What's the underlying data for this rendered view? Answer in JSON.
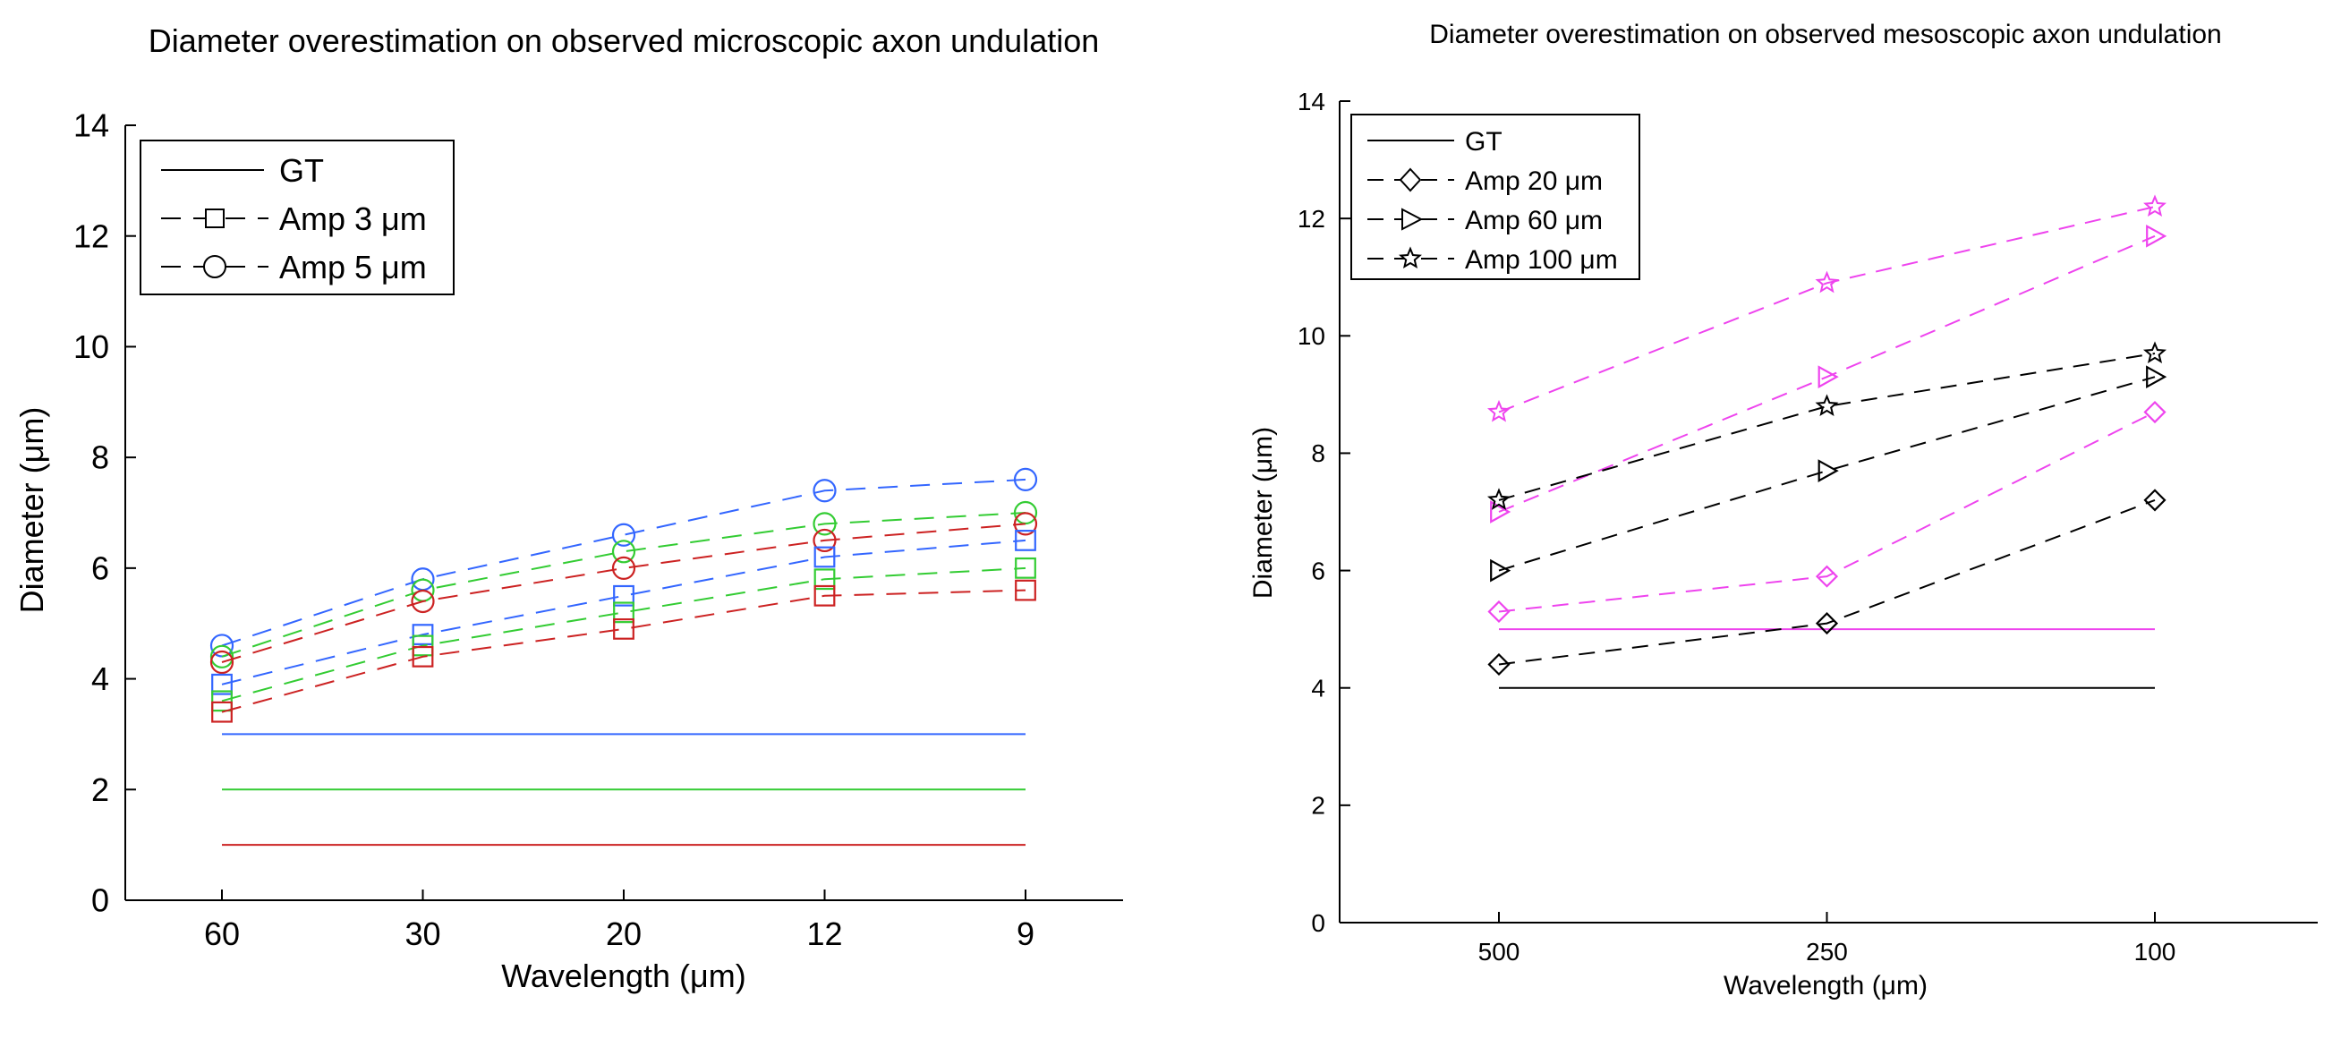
{
  "chart_data": [
    {
      "type": "line",
      "title": "Diameter overestimation on observed microscopic axon undulation",
      "xlabel": "Wavelength (μm)",
      "ylabel": "Diameter (μm)",
      "categories": [
        "60",
        "30",
        "20",
        "12",
        "9"
      ],
      "ylim": [
        0,
        14
      ],
      "yticks": [
        "0",
        "2",
        "4",
        "6",
        "8",
        "10",
        "12",
        "14"
      ],
      "legend_position": "top-left",
      "legend": [
        {
          "label": "GT",
          "style": "solid",
          "marker": "none"
        },
        {
          "label": "Amp 3 μm",
          "style": "dashed",
          "marker": "square"
        },
        {
          "label": "Amp 5 μm",
          "style": "dashed",
          "marker": "circle"
        }
      ],
      "series": [
        {
          "name": "GT blue",
          "color": "#3366ff",
          "style": "solid",
          "marker": "none",
          "values": [
            3,
            3,
            3,
            3,
            3
          ]
        },
        {
          "name": "GT green",
          "color": "#33cc33",
          "style": "solid",
          "marker": "none",
          "values": [
            2,
            2,
            2,
            2,
            2
          ]
        },
        {
          "name": "GT red",
          "color": "#cc2222",
          "style": "solid",
          "marker": "none",
          "values": [
            1,
            1,
            1,
            1,
            1
          ]
        },
        {
          "name": "Amp 5 μm blue",
          "color": "#3366ff",
          "style": "dashed",
          "marker": "circle",
          "values": [
            4.6,
            5.8,
            6.6,
            7.4,
            7.6
          ]
        },
        {
          "name": "Amp 5 μm green",
          "color": "#33cc33",
          "style": "dashed",
          "marker": "circle",
          "values": [
            4.4,
            5.6,
            6.3,
            6.8,
            7.0
          ]
        },
        {
          "name": "Amp 5 μm red",
          "color": "#cc2222",
          "style": "dashed",
          "marker": "circle",
          "values": [
            4.3,
            5.4,
            6.0,
            6.5,
            6.8
          ]
        },
        {
          "name": "Amp 3 μm blue",
          "color": "#3366ff",
          "style": "dashed",
          "marker": "square",
          "values": [
            3.9,
            4.8,
            5.5,
            6.2,
            6.5
          ]
        },
        {
          "name": "Amp 3 μm green",
          "color": "#33cc33",
          "style": "dashed",
          "marker": "square",
          "values": [
            3.6,
            4.6,
            5.2,
            5.8,
            6.0
          ]
        },
        {
          "name": "Amp 3 μm red",
          "color": "#cc2222",
          "style": "dashed",
          "marker": "square",
          "values": [
            3.4,
            4.4,
            4.9,
            5.5,
            5.6
          ]
        }
      ]
    },
    {
      "type": "line",
      "title": "Diameter overestimation on observed mesoscopic axon undulation",
      "xlabel": "Wavelength (μm)",
      "ylabel": "Diameter (μm)",
      "categories": [
        "500",
        "250",
        "100"
      ],
      "ylim": [
        0,
        14
      ],
      "yticks": [
        "0",
        "2",
        "4",
        "6",
        "8",
        "10",
        "12",
        "14"
      ],
      "legend_position": "top-left",
      "legend": [
        {
          "label": "GT",
          "style": "solid",
          "marker": "none"
        },
        {
          "label": "Amp 20 μm",
          "style": "dashed",
          "marker": "diamond"
        },
        {
          "label": "Amp 60 μm",
          "style": "dashed",
          "marker": "triangle-right"
        },
        {
          "label": "Amp 100 μm",
          "style": "dashed",
          "marker": "star"
        }
      ],
      "series": [
        {
          "name": "GT magenta",
          "color": "#ee44ee",
          "style": "solid",
          "marker": "none",
          "values": [
            5,
            5,
            5
          ]
        },
        {
          "name": "GT black",
          "color": "#000000",
          "style": "solid",
          "marker": "none",
          "values": [
            4,
            4,
            4
          ]
        },
        {
          "name": "Amp 100 μm magenta",
          "color": "#ee44ee",
          "style": "dashed",
          "marker": "star",
          "values": [
            8.7,
            10.9,
            12.2
          ]
        },
        {
          "name": "Amp 60 μm magenta",
          "color": "#ee44ee",
          "style": "dashed",
          "marker": "triangle-right",
          "values": [
            7.0,
            9.3,
            11.7
          ]
        },
        {
          "name": "Amp 20 μm magenta",
          "color": "#ee44ee",
          "style": "dashed",
          "marker": "diamond",
          "values": [
            5.3,
            5.9,
            8.7
          ]
        },
        {
          "name": "Amp 100 μm black",
          "color": "#000000",
          "style": "dashed",
          "marker": "star",
          "values": [
            7.2,
            8.8,
            9.7
          ]
        },
        {
          "name": "Amp 60 μm black",
          "color": "#000000",
          "style": "dashed",
          "marker": "triangle-right",
          "values": [
            6.0,
            7.7,
            9.3
          ]
        },
        {
          "name": "Amp 20 μm black",
          "color": "#000000",
          "style": "dashed",
          "marker": "diamond",
          "values": [
            4.4,
            5.1,
            7.2
          ]
        }
      ]
    }
  ]
}
